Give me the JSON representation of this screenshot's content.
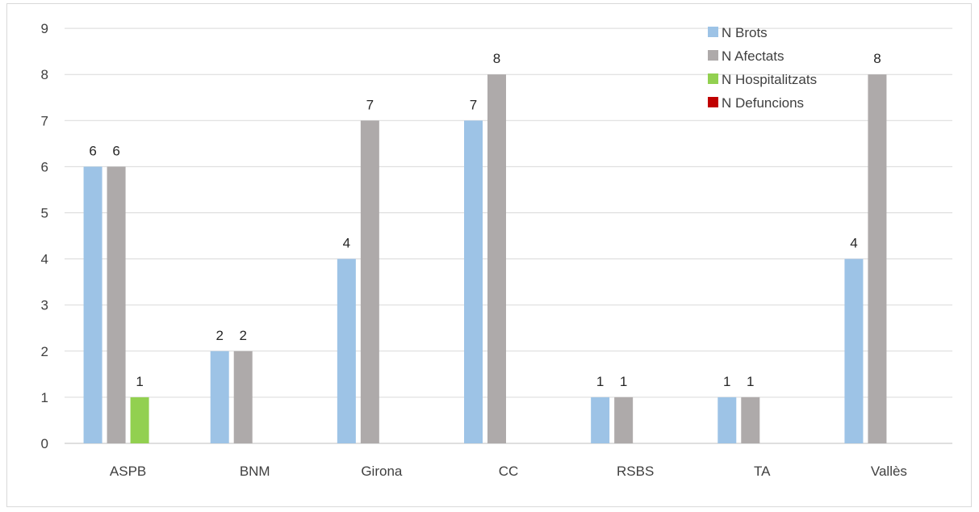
{
  "chart_data": {
    "type": "bar",
    "title": "",
    "xlabel": "",
    "ylabel": "",
    "ylim": [
      0,
      9
    ],
    "yticks": [
      0,
      1,
      2,
      3,
      4,
      5,
      6,
      7,
      8,
      9
    ],
    "grid": true,
    "legend_position": "top-right",
    "categories": [
      "ASPB",
      "BNM",
      "Girona",
      "CC",
      "RSBS",
      "TA",
      "Vallès"
    ],
    "series": [
      {
        "name": "N Brots",
        "color": "#9dc3e6",
        "values": [
          6,
          2,
          4,
          7,
          1,
          1,
          4
        ]
      },
      {
        "name": "N Afectats",
        "color": "#aeaaaa",
        "values": [
          6,
          2,
          7,
          8,
          1,
          1,
          8
        ]
      },
      {
        "name": "N Hospitalitzats",
        "color": "#92d050",
        "values": [
          1,
          null,
          null,
          null,
          null,
          null,
          null
        ]
      },
      {
        "name": "N Defuncions",
        "color": "#c00000",
        "values": [
          null,
          null,
          null,
          null,
          null,
          null,
          null
        ]
      }
    ]
  }
}
